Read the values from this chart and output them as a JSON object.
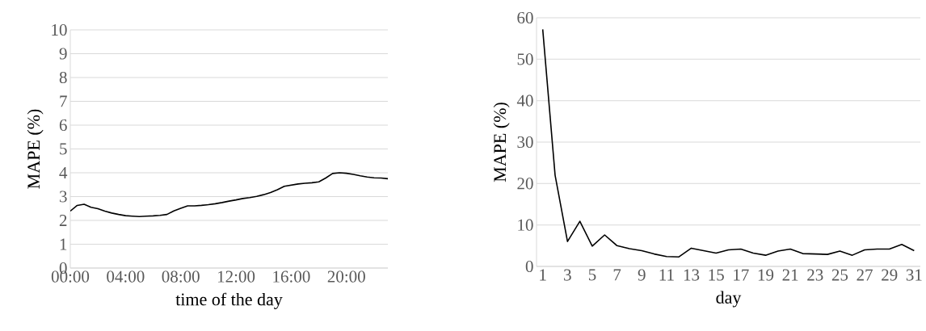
{
  "chart_data": [
    {
      "type": "line",
      "xlabel": "time of the day",
      "ylabel": "MAPE (%)",
      "color": "#000000",
      "grid": "y",
      "line_style": "solid",
      "x": [
        0,
        0.5,
        1,
        1.5,
        2,
        2.5,
        3,
        3.5,
        4,
        4.5,
        5,
        5.5,
        6,
        6.5,
        7,
        7.5,
        8,
        8.5,
        9,
        9.5,
        10,
        10.5,
        11,
        11.5,
        12,
        12.5,
        13,
        13.5,
        14,
        14.5,
        15,
        15.5,
        16,
        16.5,
        17,
        17.5,
        18,
        18.5,
        19,
        19.5,
        20,
        20.5,
        21,
        21.5,
        22,
        22.5,
        23
      ],
      "values": [
        2.39,
        2.63,
        2.68,
        2.55,
        2.49,
        2.39,
        2.31,
        2.25,
        2.2,
        2.18,
        2.16,
        2.18,
        2.19,
        2.21,
        2.25,
        2.4,
        2.51,
        2.61,
        2.61,
        2.63,
        2.66,
        2.7,
        2.75,
        2.81,
        2.86,
        2.92,
        2.96,
        3.01,
        3.08,
        3.17,
        3.29,
        3.43,
        3.48,
        3.53,
        3.56,
        3.58,
        3.62,
        3.78,
        3.97,
        4.0,
        3.98,
        3.93,
        3.87,
        3.82,
        3.79,
        3.78,
        3.75
      ],
      "xlim": [
        0,
        23
      ],
      "xticks": [
        {
          "value": 0,
          "label": "00:00"
        },
        {
          "value": 4,
          "label": "04:00"
        },
        {
          "value": 8,
          "label": "08:00"
        },
        {
          "value": 12,
          "label": "12:00"
        },
        {
          "value": 16,
          "label": "16:00"
        },
        {
          "value": 20,
          "label": "20:00"
        }
      ],
      "ylim": [
        0,
        10
      ],
      "yticks": [
        0,
        1,
        2,
        3,
        4,
        5,
        6,
        7,
        8,
        9,
        10
      ]
    },
    {
      "type": "line",
      "xlabel": "day",
      "ylabel": "MAPE (%)",
      "color": "#000000",
      "grid": "y",
      "line_style": "solid",
      "categories": [
        "1",
        null,
        "3",
        null,
        "5",
        null,
        "7",
        null,
        "9",
        null,
        "11",
        null,
        "13",
        null,
        "15",
        null,
        "17",
        null,
        "19",
        null,
        "21",
        null,
        "23",
        null,
        "25",
        null,
        "27",
        null,
        "29",
        null,
        "31"
      ],
      "values": [
        57.2,
        22.0,
        6.0,
        10.9,
        4.9,
        7.6,
        5.0,
        4.3,
        3.8,
        3.0,
        2.4,
        2.3,
        4.4,
        3.8,
        3.2,
        4.0,
        4.2,
        3.2,
        2.7,
        3.7,
        4.2,
        3.1,
        3.0,
        2.9,
        3.7,
        2.7,
        4.0,
        4.2,
        4.2,
        5.3,
        3.8
      ],
      "ylim": [
        0,
        60
      ],
      "yticks": [
        0,
        10,
        20,
        30,
        40,
        50,
        60
      ]
    }
  ]
}
